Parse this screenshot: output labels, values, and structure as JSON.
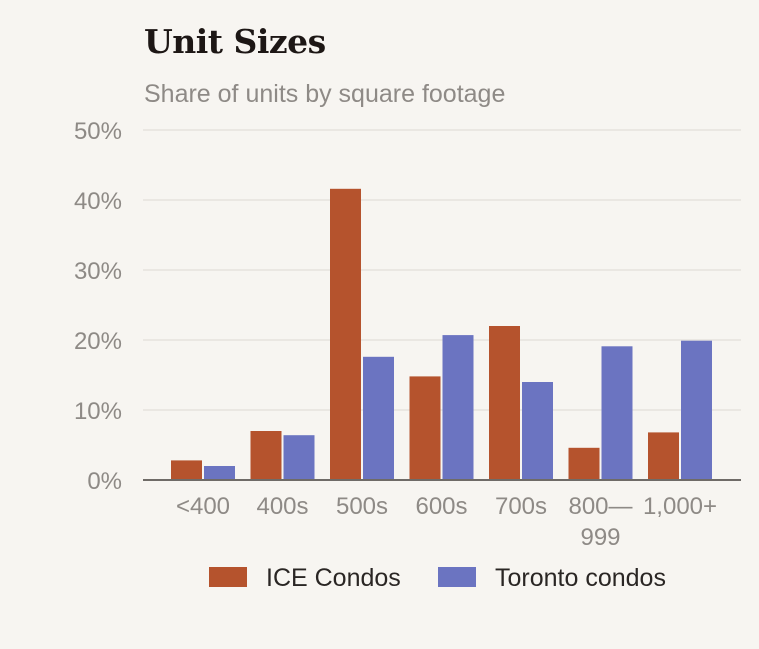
{
  "chart_data": {
    "type": "bar",
    "title": "Unit Sizes",
    "subtitle": "Share of units by square footage",
    "categories": [
      [
        "<400"
      ],
      [
        "400s"
      ],
      [
        "500s"
      ],
      [
        "600s"
      ],
      [
        "700s"
      ],
      [
        "800—",
        "999"
      ],
      [
        "1,000+"
      ]
    ],
    "series": [
      {
        "name": "ICE Condos",
        "color": "#b5532d",
        "values": [
          2.8,
          7.0,
          41.6,
          14.8,
          22.0,
          4.6,
          6.8
        ]
      },
      {
        "name": "Toronto condos",
        "color": "#6b74c1",
        "values": [
          2.0,
          6.4,
          17.6,
          20.7,
          14.0,
          19.1,
          19.9
        ]
      }
    ],
    "ylim": [
      0,
      50
    ],
    "yticks": [
      "0%",
      "10%",
      "20%",
      "30%",
      "40%",
      "50%"
    ],
    "grid": true,
    "legend_position": "bottom"
  }
}
